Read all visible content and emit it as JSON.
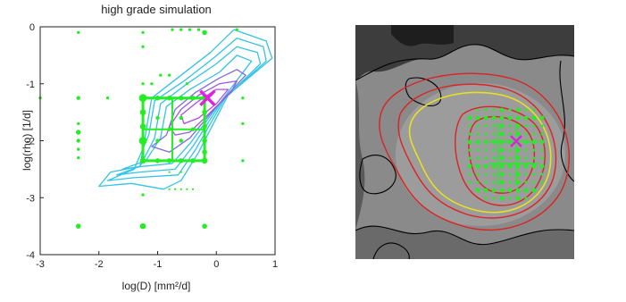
{
  "chart_data": [
    {
      "type": "contour-scatter",
      "title": "high grade simulation",
      "xlabel": "log(D) [mm²/d]",
      "ylabel": "log(rho) [1/d]",
      "xlim": [
        -3,
        1
      ],
      "ylim": [
        -4,
        0
      ],
      "xticks": [
        "-3",
        "-2",
        "-1",
        "0",
        "1"
      ],
      "yticks": [
        "0",
        "-1",
        "-2",
        "-3",
        "-4"
      ],
      "grid": false,
      "colors": {
        "points": "#22ee22",
        "contour_outer": "#33c3e6",
        "contour_inner": "#9a5ae6",
        "marker": "#e020e0"
      },
      "marker": {
        "symbol": "x",
        "x": -0.15,
        "y": -1.25
      },
      "contours": [
        {
          "level": 1,
          "color": "#33c3e6",
          "points": [
            [
              -2.0,
              -2.8
            ],
            [
              -1.8,
              -2.55
            ],
            [
              -1.3,
              -2.45
            ],
            [
              -1.2,
              -1.85
            ],
            [
              -1.1,
              -1.25
            ],
            [
              -0.6,
              -0.85
            ],
            [
              -0.1,
              -0.45
            ],
            [
              0.3,
              -0.05
            ],
            [
              0.85,
              -0.25
            ],
            [
              0.95,
              -0.55
            ],
            [
              0.2,
              -1.2
            ],
            [
              -0.3,
              -2.2
            ],
            [
              -0.6,
              -2.7
            ],
            [
              -0.9,
              -2.85
            ],
            [
              -1.45,
              -2.75
            ]
          ]
        },
        {
          "level": 2,
          "color": "#33c3e6",
          "points": [
            [
              -1.85,
              -2.7
            ],
            [
              -1.4,
              -2.5
            ],
            [
              -1.15,
              -1.9
            ],
            [
              -1.05,
              -1.3
            ],
            [
              -0.55,
              -0.95
            ],
            [
              -0.05,
              -0.55
            ],
            [
              0.35,
              -0.2
            ],
            [
              0.8,
              -0.35
            ],
            [
              0.85,
              -0.6
            ],
            [
              0.15,
              -1.25
            ],
            [
              -0.35,
              -2.15
            ],
            [
              -0.65,
              -2.6
            ],
            [
              -1.4,
              -2.65
            ]
          ]
        },
        {
          "level": 3,
          "color": "#33c3e6",
          "points": [
            [
              -1.7,
              -2.6
            ],
            [
              -1.3,
              -2.45
            ],
            [
              -1.05,
              -1.95
            ],
            [
              -0.95,
              -1.35
            ],
            [
              -0.5,
              -1.0
            ],
            [
              0.0,
              -0.65
            ],
            [
              0.35,
              -0.35
            ],
            [
              0.7,
              -0.45
            ],
            [
              0.75,
              -0.65
            ],
            [
              0.1,
              -1.3
            ],
            [
              -0.4,
              -2.1
            ],
            [
              -0.7,
              -2.5
            ],
            [
              -1.3,
              -2.55
            ]
          ]
        },
        {
          "level": 4,
          "color": "#33c3e6",
          "points": [
            [
              -1.6,
              -2.5
            ],
            [
              -1.2,
              -2.35
            ],
            [
              -0.95,
              -1.95
            ],
            [
              -0.85,
              -1.4
            ],
            [
              -0.45,
              -1.1
            ],
            [
              0.05,
              -0.8
            ],
            [
              0.35,
              -0.5
            ],
            [
              0.6,
              -0.6
            ],
            [
              0.05,
              -1.35
            ],
            [
              -0.45,
              -2.05
            ],
            [
              -0.75,
              -2.4
            ],
            [
              -1.25,
              -2.45
            ]
          ]
        },
        {
          "level": 5,
          "color": "#7f6be0",
          "points": [
            [
              -1.1,
              -2.1
            ],
            [
              -0.85,
              -1.9
            ],
            [
              -0.7,
              -1.45
            ],
            [
              -0.35,
              -1.15
            ],
            [
              0.05,
              -0.9
            ],
            [
              0.35,
              -0.75
            ],
            [
              0.5,
              -0.85
            ],
            [
              0.0,
              -1.4
            ],
            [
              -0.45,
              -1.95
            ],
            [
              -0.8,
              -2.2
            ]
          ]
        },
        {
          "level": 6,
          "color": "#9a5ae6",
          "points": [
            [
              -0.8,
              -1.75
            ],
            [
              -0.6,
              -1.45
            ],
            [
              -0.3,
              -1.2
            ],
            [
              0.05,
              -1.0
            ],
            [
              0.35,
              -0.95
            ],
            [
              0.25,
              -1.15
            ],
            [
              -0.05,
              -1.45
            ],
            [
              -0.45,
              -1.85
            ],
            [
              -0.7,
              -1.9
            ]
          ]
        },
        {
          "level": 7,
          "color": "#b04be6",
          "points": [
            [
              -0.6,
              -1.55
            ],
            [
              -0.3,
              -1.3
            ],
            [
              0.0,
              -1.1
            ],
            [
              0.2,
              -1.1
            ],
            [
              0.0,
              -1.35
            ],
            [
              -0.3,
              -1.6
            ],
            [
              -0.55,
              -1.7
            ]
          ]
        }
      ],
      "scatter": [
        {
          "x": -3.0,
          "y": -1.25,
          "s": 3
        },
        {
          "x": -2.35,
          "y": -1.25,
          "s": 4
        },
        {
          "x": -2.35,
          "y": -1.7,
          "s": 3
        },
        {
          "x": -2.35,
          "y": -1.85,
          "s": 5
        },
        {
          "x": -2.35,
          "y": -2.0,
          "s": 4
        },
        {
          "x": -2.35,
          "y": -2.15,
          "s": 3
        },
        {
          "x": -2.35,
          "y": -2.3,
          "s": 3
        },
        {
          "x": -2.35,
          "y": -3.5,
          "s": 5
        },
        {
          "x": -2.35,
          "y": -0.1,
          "s": 3
        },
        {
          "x": -1.85,
          "y": -1.25,
          "s": 3
        },
        {
          "x": -1.25,
          "y": -0.1,
          "s": 3
        },
        {
          "x": -1.25,
          "y": -0.35,
          "s": 3
        },
        {
          "x": -1.25,
          "y": -1.25,
          "s": 8
        },
        {
          "x": -1.25,
          "y": -1.5,
          "s": 6
        },
        {
          "x": -1.25,
          "y": -1.75,
          "s": 6
        },
        {
          "x": -1.25,
          "y": -2.0,
          "s": 8
        },
        {
          "x": -1.25,
          "y": -2.35,
          "s": 6
        },
        {
          "x": -1.25,
          "y": -3.5,
          "s": 6
        },
        {
          "x": -1.0,
          "y": -1.25,
          "s": 5
        },
        {
          "x": -0.8,
          "y": -1.25,
          "s": 5
        },
        {
          "x": -0.6,
          "y": -1.25,
          "s": 5
        },
        {
          "x": -0.4,
          "y": -1.25,
          "s": 5
        },
        {
          "x": -0.2,
          "y": -1.25,
          "s": 6
        },
        {
          "x": -1.0,
          "y": -2.35,
          "s": 5
        },
        {
          "x": -0.8,
          "y": -2.35,
          "s": 5
        },
        {
          "x": -0.6,
          "y": -2.35,
          "s": 5
        },
        {
          "x": -0.4,
          "y": -2.35,
          "s": 5
        },
        {
          "x": -0.2,
          "y": -2.35,
          "s": 6
        },
        {
          "x": -1.0,
          "y": -1.6,
          "s": 4
        },
        {
          "x": -1.0,
          "y": -2.0,
          "s": 4
        },
        {
          "x": -0.8,
          "y": -1.8,
          "s": 4
        },
        {
          "x": -0.6,
          "y": -1.6,
          "s": 4
        },
        {
          "x": -0.6,
          "y": -2.0,
          "s": 4
        },
        {
          "x": -0.4,
          "y": -1.8,
          "s": 4
        },
        {
          "x": -0.2,
          "y": -1.5,
          "s": 5
        },
        {
          "x": -0.2,
          "y": -1.75,
          "s": 5
        },
        {
          "x": -0.2,
          "y": -2.0,
          "s": 5
        },
        {
          "x": -0.2,
          "y": -2.2,
          "s": 5
        },
        {
          "x": -0.2,
          "y": -0.1,
          "s": 5
        },
        {
          "x": -0.2,
          "y": -3.5,
          "s": 5
        },
        {
          "x": -0.75,
          "y": -0.05,
          "s": 3
        },
        {
          "x": -0.6,
          "y": -0.05,
          "s": 3
        },
        {
          "x": -0.45,
          "y": -0.05,
          "s": 3
        },
        {
          "x": -0.3,
          "y": -0.05,
          "s": 3
        },
        {
          "x": -0.8,
          "y": -2.85,
          "s": 2
        },
        {
          "x": -0.7,
          "y": -2.85,
          "s": 2
        },
        {
          "x": -0.6,
          "y": -2.85,
          "s": 2
        },
        {
          "x": -0.5,
          "y": -2.85,
          "s": 2
        },
        {
          "x": -0.4,
          "y": -2.85,
          "s": 2
        },
        {
          "x": -1.25,
          "y": -2.95,
          "s": 3
        },
        {
          "x": 0.45,
          "y": -1.25,
          "s": 3
        },
        {
          "x": 0.45,
          "y": -1.7,
          "s": 3
        },
        {
          "x": 0.45,
          "y": -2.35,
          "s": 3
        },
        {
          "x": 0.35,
          "y": -0.05,
          "s": 3
        },
        {
          "x": -1.25,
          "y": -1.0,
          "s": 3
        },
        {
          "x": -1.1,
          "y": -1.0,
          "s": 3
        },
        {
          "x": -0.95,
          "y": -0.85,
          "s": 3
        },
        {
          "x": -0.8,
          "y": -0.85,
          "s": 3
        },
        {
          "x": -0.5,
          "y": -1.0,
          "s": 3
        },
        {
          "x": -0.8,
          "y": -2.55,
          "s": 2
        },
        {
          "x": -0.6,
          "y": -2.55,
          "s": 2
        }
      ]
    },
    {
      "type": "image",
      "colors": {
        "background": "#8a8a8a",
        "region_line": "#000000",
        "outer_contour": "#dc2222",
        "mid_contour": "#e8e020",
        "points": "#22ee22",
        "marker": "#e020e0"
      }
    }
  ]
}
